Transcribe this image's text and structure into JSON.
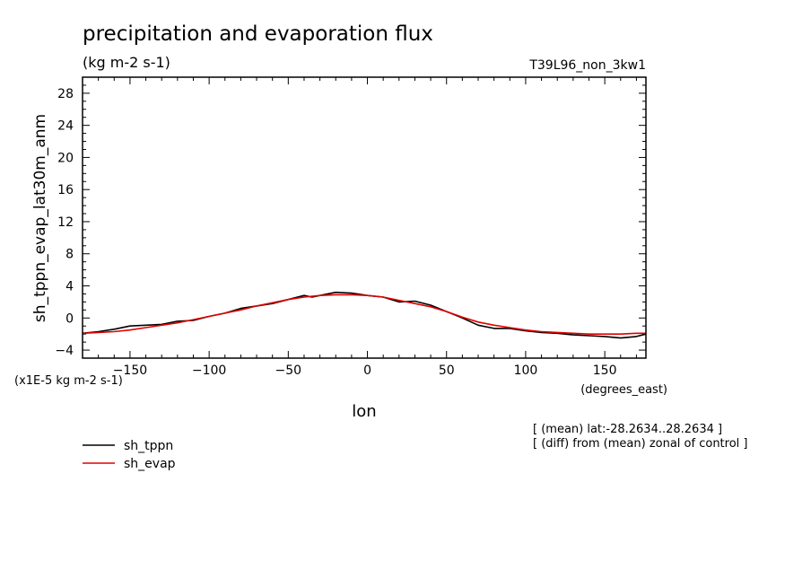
{
  "chart_data": {
    "type": "line",
    "title": "precipitation and evaporation flux",
    "subtitle": "(kg m-2 s-1)",
    "run_label": "T39L96_non_3kw1",
    "ylabel": "sh_tppn_evap_lat30m_anm",
    "xlabel": "lon",
    "x_units": "(degrees_east)",
    "y_scale_note": "(x1E-5 kg m-2 s-1)",
    "xlim": [
      -180,
      176
    ],
    "ylim": [
      -5,
      30
    ],
    "xticks": [
      -150,
      -100,
      -50,
      0,
      50,
      100,
      150
    ],
    "yticks": [
      -4,
      0,
      4,
      8,
      12,
      16,
      20,
      24,
      28
    ],
    "notes": [
      "[ (mean) lat:-28.2634..28.2634 ]",
      "[ (diff) from (mean) zonal of control ]"
    ],
    "colors": {
      "sh_tppn": "#000000",
      "sh_evap": "#e00000"
    },
    "series": [
      {
        "name": "sh_tppn",
        "color": "#000000",
        "x": [
          -180,
          -170,
          -160,
          -150,
          -140,
          -130,
          -120,
          -110,
          -100,
          -90,
          -80,
          -70,
          -60,
          -50,
          -40,
          -35,
          -30,
          -20,
          -10,
          0,
          10,
          20,
          30,
          40,
          50,
          60,
          70,
          80,
          90,
          100,
          110,
          120,
          130,
          140,
          150,
          160,
          170,
          176
        ],
        "y": [
          -1.9,
          -1.7,
          -1.4,
          -1.0,
          -0.9,
          -0.8,
          -0.4,
          -0.3,
          0.2,
          0.6,
          1.2,
          1.5,
          1.8,
          2.3,
          2.8,
          2.6,
          2.8,
          3.2,
          3.1,
          2.8,
          2.6,
          2.0,
          2.1,
          1.6,
          0.8,
          0.0,
          -0.9,
          -1.3,
          -1.3,
          -1.6,
          -1.8,
          -1.9,
          -2.1,
          -2.2,
          -2.3,
          -2.5,
          -2.3,
          -2.0
        ]
      },
      {
        "name": "sh_evap",
        "color": "#e00000",
        "x": [
          -180,
          -170,
          -160,
          -150,
          -140,
          -130,
          -120,
          -110,
          -100,
          -90,
          -80,
          -70,
          -60,
          -50,
          -40,
          -30,
          -20,
          -10,
          0,
          10,
          20,
          30,
          40,
          50,
          60,
          70,
          80,
          90,
          100,
          110,
          120,
          130,
          140,
          150,
          160,
          170,
          176
        ],
        "y": [
          -1.9,
          -1.8,
          -1.7,
          -1.5,
          -1.2,
          -0.9,
          -0.6,
          -0.2,
          0.2,
          0.6,
          1.0,
          1.5,
          1.9,
          2.3,
          2.6,
          2.8,
          2.9,
          2.9,
          2.8,
          2.6,
          2.2,
          1.8,
          1.4,
          0.8,
          0.1,
          -0.5,
          -0.9,
          -1.2,
          -1.5,
          -1.7,
          -1.8,
          -1.9,
          -2.0,
          -2.0,
          -2.0,
          -1.9,
          -1.9
        ]
      }
    ]
  }
}
